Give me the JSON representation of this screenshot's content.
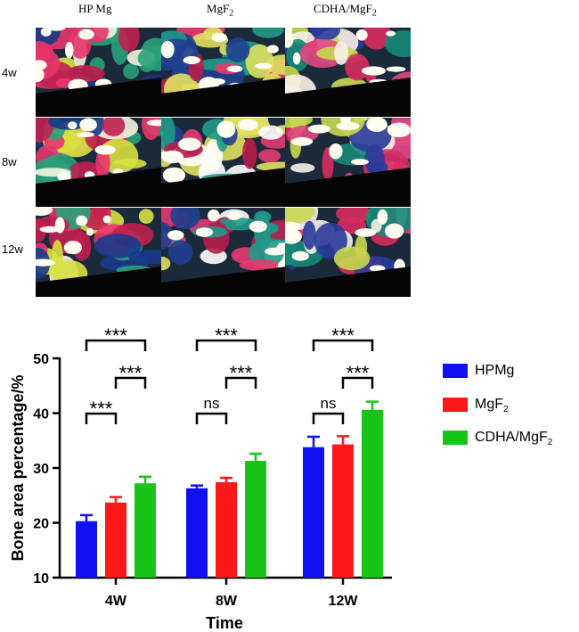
{
  "histology": {
    "columns": [
      {
        "label": "HP Mg"
      },
      {
        "label": "MgF",
        "sub": "2"
      },
      {
        "label": "CDHA/MgF",
        "sub": "2"
      }
    ],
    "rows": [
      "4w",
      "8w",
      "12w"
    ]
  },
  "legend": [
    {
      "label": "HPMg",
      "color": "#1010f0"
    },
    {
      "label": "MgF",
      "sub": "2",
      "color": "#ff1818"
    },
    {
      "label": "CDHA/MgF",
      "sub": "2",
      "color": "#19c419"
    }
  ],
  "chart_data": {
    "type": "bar",
    "title": "",
    "xlabel": "Time",
    "ylabel": "Bone area percentage/%",
    "ylim": [
      10,
      50
    ],
    "yticks": [
      10,
      20,
      30,
      40,
      50
    ],
    "categories": [
      "4W",
      "8W",
      "12W"
    ],
    "series": [
      {
        "name": "HPMg",
        "color": "#1010f0",
        "values": [
          20.3,
          26.3,
          33.8
        ],
        "errors": [
          1.1,
          0.5,
          1.9
        ]
      },
      {
        "name": "MgF2",
        "color": "#ff1818",
        "values": [
          23.7,
          27.4,
          34.3
        ],
        "errors": [
          1.0,
          0.8,
          1.5
        ]
      },
      {
        "name": "CDHA/MgF2",
        "color": "#19c419",
        "values": [
          27.2,
          31.3,
          40.6
        ],
        "errors": [
          1.2,
          1.3,
          1.5
        ]
      }
    ],
    "significance": [
      {
        "category": "4W",
        "pairs": [
          {
            "from": "HPMg",
            "to": "CDHA/MgF2",
            "label": "***"
          },
          {
            "from": "MgF2",
            "to": "CDHA/MgF2",
            "label": "***"
          },
          {
            "from": "HPMg",
            "to": "MgF2",
            "label": "***"
          }
        ]
      },
      {
        "category": "8W",
        "pairs": [
          {
            "from": "HPMg",
            "to": "CDHA/MgF2",
            "label": "***"
          },
          {
            "from": "MgF2",
            "to": "CDHA/MgF2",
            "label": "***"
          },
          {
            "from": "HPMg",
            "to": "MgF2",
            "label": "ns"
          }
        ]
      },
      {
        "category": "12W",
        "pairs": [
          {
            "from": "HPMg",
            "to": "CDHA/MgF2",
            "label": "***"
          },
          {
            "from": "MgF2",
            "to": "CDHA/MgF2",
            "label": "***"
          },
          {
            "from": "HPMg",
            "to": "MgF2",
            "label": "ns"
          }
        ]
      }
    ]
  }
}
